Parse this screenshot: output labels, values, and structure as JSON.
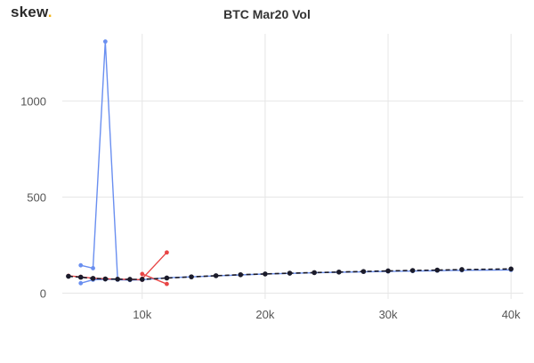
{
  "brand": {
    "name": "skew",
    "dot": "."
  },
  "chart_data": {
    "type": "line",
    "title": "BTC Mar20 Vol",
    "xlabel": "",
    "ylabel": "",
    "xlim": [
      3500,
      41000
    ],
    "ylim": [
      -30,
      1350
    ],
    "xticks": [
      10000,
      20000,
      30000,
      40000
    ],
    "xtick_labels": [
      "10k",
      "20k",
      "30k",
      "40k"
    ],
    "yticks": [
      0,
      500,
      1000
    ],
    "ytick_labels": [
      "0",
      "500",
      "1000"
    ],
    "grid": true,
    "legend": "none",
    "series": [
      {
        "color": "#6a8ff0",
        "dash": false,
        "points": [
          [
            5000,
            145
          ],
          [
            6000,
            130
          ],
          [
            7000,
            1310
          ],
          [
            8000,
            70
          ],
          [
            9000,
            68
          ],
          [
            10000,
            70
          ],
          [
            12000,
            80
          ],
          [
            14000,
            85
          ],
          [
            16000,
            90
          ],
          [
            18000,
            95
          ],
          [
            20000,
            100
          ],
          [
            22000,
            103
          ],
          [
            24000,
            106
          ],
          [
            26000,
            109
          ],
          [
            28000,
            111
          ],
          [
            30000,
            113
          ],
          [
            32000,
            115
          ],
          [
            34000,
            117
          ],
          [
            36000,
            119
          ],
          [
            40000,
            121
          ]
        ]
      },
      {
        "color": "#6a8ff0",
        "dash": false,
        "points": [
          [
            5000,
            52
          ],
          [
            6000,
            70
          ],
          [
            7000,
            72
          ],
          [
            8000,
            72
          ],
          [
            9000,
            70
          ],
          [
            10000,
            70
          ]
        ]
      },
      {
        "color": "#e84545",
        "dash": false,
        "points": [
          [
            10000,
            75
          ],
          [
            12000,
            212
          ]
        ]
      },
      {
        "color": "#e84545",
        "dash": false,
        "points": [
          [
            10000,
            100
          ],
          [
            12000,
            48
          ]
        ]
      },
      {
        "color": "#e84545",
        "dash": false,
        "points": [
          [
            4000,
            90
          ],
          [
            5000,
            85
          ],
          [
            6000,
            78
          ],
          [
            7000,
            75
          ],
          [
            8000,
            73
          ],
          [
            9000,
            72
          ],
          [
            10000,
            70
          ]
        ]
      },
      {
        "color": "#1b1b2a",
        "dash": true,
        "points": [
          [
            4000,
            88
          ],
          [
            5000,
            83
          ],
          [
            6000,
            77
          ],
          [
            7000,
            74
          ],
          [
            8000,
            73
          ],
          [
            9000,
            72
          ],
          [
            10000,
            72
          ],
          [
            12000,
            79
          ],
          [
            14000,
            85
          ],
          [
            16000,
            91
          ],
          [
            18000,
            96
          ],
          [
            20000,
            100
          ],
          [
            22000,
            104
          ],
          [
            24000,
            107
          ],
          [
            26000,
            110
          ],
          [
            28000,
            113
          ],
          [
            30000,
            116
          ],
          [
            32000,
            118
          ],
          [
            34000,
            120
          ],
          [
            36000,
            123
          ],
          [
            40000,
            126
          ]
        ]
      }
    ]
  }
}
